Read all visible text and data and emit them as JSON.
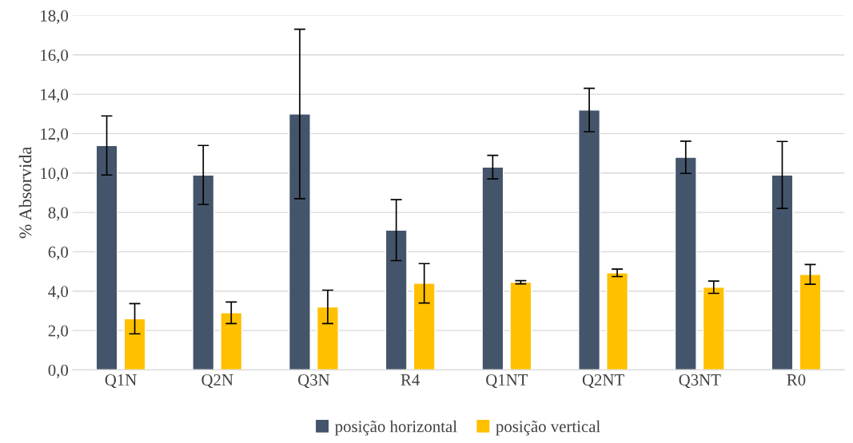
{
  "chart_data": {
    "type": "bar",
    "ylabel": "% Absorvida",
    "categories": [
      "Q1N",
      "Q2N",
      "Q3N",
      "R4",
      "Q1NT",
      "Q2NT",
      "Q3NT",
      "R0"
    ],
    "series": [
      {
        "name": "posição horizontal",
        "color": "#44546a",
        "values": [
          11.4,
          9.9,
          13.0,
          7.1,
          10.3,
          13.2,
          10.8,
          9.9
        ],
        "errors": [
          1.5,
          1.5,
          4.3,
          1.55,
          0.6,
          1.1,
          0.82,
          1.7
        ]
      },
      {
        "name": "posição vertical",
        "color": "#ffc000",
        "values": [
          2.6,
          2.9,
          3.2,
          4.4,
          4.45,
          4.93,
          4.2,
          4.85
        ],
        "errors": [
          0.77,
          0.55,
          0.85,
          1.0,
          0.08,
          0.19,
          0.31,
          0.5
        ]
      }
    ],
    "ylim": [
      0,
      18
    ],
    "yticks": [
      {
        "value": 0,
        "label": "0,0"
      },
      {
        "value": 2,
        "label": "2,0"
      },
      {
        "value": 4,
        "label": "4,0"
      },
      {
        "value": 6,
        "label": "6,0"
      },
      {
        "value": 8,
        "label": "8,0"
      },
      {
        "value": 10,
        "label": "10,0"
      },
      {
        "value": 12,
        "label": "12,0"
      },
      {
        "value": 14,
        "label": "14,0"
      },
      {
        "value": 16,
        "label": "16,0"
      },
      {
        "value": 18,
        "label": "18,0"
      }
    ],
    "grid": "y",
    "legend": "bottom"
  }
}
